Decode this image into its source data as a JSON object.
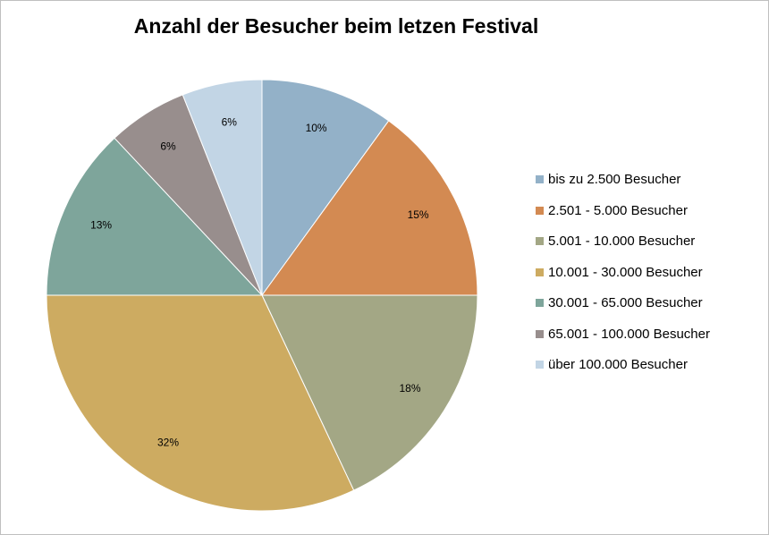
{
  "chart_data": {
    "type": "pie",
    "title": "Anzahl der Besucher beim letzen Festival",
    "legend_position": "right",
    "start_angle": "top, clockwise",
    "slices": [
      {
        "label": "bis zu 2.500 Besucher",
        "value": 10,
        "display": "10%",
        "color": "#93b1c8"
      },
      {
        "label": "2.501 - 5.000 Besucher",
        "value": 15,
        "display": "15%",
        "color": "#d38a52"
      },
      {
        "label": "5.001 - 10.000 Besucher",
        "value": 18,
        "display": "18%",
        "color": "#a3a785"
      },
      {
        "label": "10.001 - 30.000 Besucher",
        "value": 32,
        "display": "32%",
        "color": "#cdab61"
      },
      {
        "label": "30.001 - 65.000 Besucher",
        "value": 13,
        "display": "13%",
        "color": "#7ea59b"
      },
      {
        "label": "65.001 - 100.000 Besucher",
        "value": 6,
        "display": "6%",
        "color": "#988e8d"
      },
      {
        "label": "über 100.000 Besucher",
        "value": 6,
        "display": "6%",
        "color": "#c2d5e5"
      }
    ]
  }
}
